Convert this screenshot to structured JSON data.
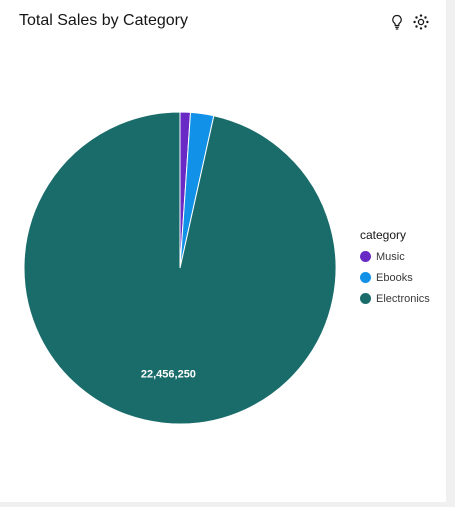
{
  "card": {
    "title": "Total Sales by Category"
  },
  "toolbar": {
    "insight_icon": "lightbulb-icon",
    "settings_icon": "gear-icon"
  },
  "chart_data": {
    "type": "pie",
    "title": "Total Sales by Category",
    "legend_title": "category",
    "legend_position": "right",
    "slices": [
      {
        "label": "Music",
        "value": 250000,
        "color": "#6929c4",
        "data_label": ""
      },
      {
        "label": "Ebooks",
        "value": 560000,
        "color": "#1192e8",
        "data_label": ""
      },
      {
        "label": "Electronics",
        "value": 22456250,
        "color": "#1a6c6b",
        "data_label": "22,456,250"
      }
    ]
  }
}
